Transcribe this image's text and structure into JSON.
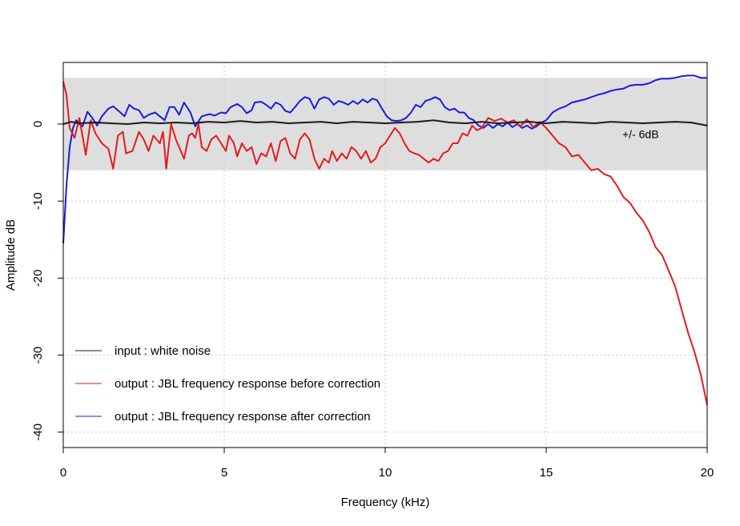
{
  "chart_data": {
    "type": "line",
    "title": "",
    "xlabel": "Frequency (kHz)",
    "ylabel": "Amplitude dB",
    "xlim": [
      0,
      20
    ],
    "ylim": [
      -42,
      8
    ],
    "x_ticks": [
      0,
      5,
      10,
      15,
      20
    ],
    "x_tick_labels": [
      "0",
      "5",
      "10",
      "15",
      "20"
    ],
    "y_ticks": [
      0,
      -10,
      -20,
      -30,
      -40
    ],
    "y_tick_labels": [
      "0",
      "-10",
      "-20",
      "-30",
      "-40"
    ],
    "grid": true,
    "band": {
      "from": -6,
      "to": 6,
      "label": "+/- 6dB",
      "color": "#dedede"
    },
    "legend_position": "bottom-left",
    "series": [
      {
        "name": "input : white noise",
        "color": "#1a1a1a",
        "points": [
          [
            0,
            0
          ],
          [
            0.25,
            0.3
          ],
          [
            0.5,
            0.1
          ],
          [
            1,
            0.2
          ],
          [
            1.5,
            0.1
          ],
          [
            2,
            0
          ],
          [
            2.5,
            0.2
          ],
          [
            3,
            0.1
          ],
          [
            3.5,
            0.2
          ],
          [
            4,
            0.1
          ],
          [
            4.5,
            0.3
          ],
          [
            5,
            0.2
          ],
          [
            5.5,
            0.4
          ],
          [
            6,
            0.2
          ],
          [
            6.5,
            0.3
          ],
          [
            7,
            0.1
          ],
          [
            7.5,
            0.2
          ],
          [
            8,
            0.3
          ],
          [
            8.5,
            0.1
          ],
          [
            9,
            0.3
          ],
          [
            9.5,
            0.2
          ],
          [
            10,
            0.1
          ],
          [
            10.5,
            0.2
          ],
          [
            11,
            0.3
          ],
          [
            11.5,
            0.5
          ],
          [
            12,
            0.2
          ],
          [
            12.5,
            0.1
          ],
          [
            13,
            0.3
          ],
          [
            13.5,
            0.1
          ],
          [
            14,
            0.2
          ],
          [
            14.5,
            0.3
          ],
          [
            15,
            0.1
          ],
          [
            15.5,
            0.3
          ],
          [
            16,
            0.2
          ],
          [
            16.5,
            0.1
          ],
          [
            17,
            0.3
          ],
          [
            17.5,
            0.2
          ],
          [
            18,
            0.1
          ],
          [
            18.5,
            0.2
          ],
          [
            19,
            0.3
          ],
          [
            19.5,
            0.2
          ],
          [
            20,
            -0.2
          ]
        ]
      },
      {
        "name": "output : JBL frequency response before correction",
        "color": "#e41a1c",
        "points": [
          [
            0,
            5.5
          ],
          [
            0.1,
            3.8
          ],
          [
            0.2,
            -0.5
          ],
          [
            0.35,
            -1.8
          ],
          [
            0.5,
            0.8
          ],
          [
            0.7,
            -4
          ],
          [
            0.85,
            0.5
          ],
          [
            1,
            -1.2
          ],
          [
            1.2,
            -2.5
          ],
          [
            1.4,
            -3.2
          ],
          [
            1.55,
            -5.8
          ],
          [
            1.7,
            -1.5
          ],
          [
            1.85,
            -1
          ],
          [
            1.95,
            -3.8
          ],
          [
            2.15,
            -3.5
          ],
          [
            2.35,
            -1
          ],
          [
            2.5,
            -2
          ],
          [
            2.65,
            -3.5
          ],
          [
            2.8,
            -1.5
          ],
          [
            3.0,
            -2.5
          ],
          [
            3.1,
            -1
          ],
          [
            3.2,
            -5.8
          ],
          [
            3.35,
            0
          ],
          [
            3.5,
            -2
          ],
          [
            3.65,
            -3.5
          ],
          [
            3.75,
            -4.5
          ],
          [
            3.9,
            -1.5
          ],
          [
            4.0,
            -1.2
          ],
          [
            4.1,
            -1.8
          ],
          [
            4.2,
            0
          ],
          [
            4.3,
            -3
          ],
          [
            4.45,
            -3.5
          ],
          [
            4.6,
            -2
          ],
          [
            4.75,
            -1.5
          ],
          [
            4.9,
            -2.5
          ],
          [
            5.05,
            -3.5
          ],
          [
            5.15,
            -1.5
          ],
          [
            5.3,
            -2.5
          ],
          [
            5.4,
            -4.2
          ],
          [
            5.55,
            -2.5
          ],
          [
            5.7,
            -3.5
          ],
          [
            5.85,
            -3
          ],
          [
            6.0,
            -5.2
          ],
          [
            6.15,
            -3.8
          ],
          [
            6.3,
            -4.2
          ],
          [
            6.45,
            -2.5
          ],
          [
            6.6,
            -4.8
          ],
          [
            6.75,
            -2.2
          ],
          [
            6.9,
            -1.8
          ],
          [
            7.05,
            -3.8
          ],
          [
            7.2,
            -4.5
          ],
          [
            7.35,
            -2
          ],
          [
            7.5,
            -1.2
          ],
          [
            7.65,
            -2
          ],
          [
            7.8,
            -4.5
          ],
          [
            7.95,
            -5.8
          ],
          [
            8.1,
            -4.5
          ],
          [
            8.25,
            -5
          ],
          [
            8.35,
            -3.5
          ],
          [
            8.5,
            -4.8
          ],
          [
            8.65,
            -3.8
          ],
          [
            8.8,
            -4.5
          ],
          [
            8.95,
            -3
          ],
          [
            9.1,
            -3.5
          ],
          [
            9.25,
            -4.5
          ],
          [
            9.4,
            -3.5
          ],
          [
            9.55,
            -5
          ],
          [
            9.7,
            -4.5
          ],
          [
            9.85,
            -3
          ],
          [
            10.0,
            -2.5
          ],
          [
            10.15,
            -1.5
          ],
          [
            10.3,
            -0.5
          ],
          [
            10.45,
            -1.2
          ],
          [
            10.6,
            -2.5
          ],
          [
            10.75,
            -3.5
          ],
          [
            10.9,
            -3.8
          ],
          [
            11.05,
            -4
          ],
          [
            11.2,
            -4.5
          ],
          [
            11.35,
            -5
          ],
          [
            11.5,
            -4.5
          ],
          [
            11.65,
            -4.8
          ],
          [
            11.8,
            -3.8
          ],
          [
            11.95,
            -3.5
          ],
          [
            12.1,
            -2.5
          ],
          [
            12.25,
            -2.5
          ],
          [
            12.4,
            -1.2
          ],
          [
            12.55,
            -1.5
          ],
          [
            12.7,
            -0.2
          ],
          [
            12.85,
            -0.8
          ],
          [
            13.0,
            -0.5
          ],
          [
            13.2,
            0.8
          ],
          [
            13.4,
            0.4
          ],
          [
            13.6,
            0.7
          ],
          [
            13.8,
            0.2
          ],
          [
            14.0,
            0.5
          ],
          [
            14.2,
            -0.3
          ],
          [
            14.4,
            0.6
          ],
          [
            14.6,
            -0.4
          ],
          [
            14.8,
            0.3
          ],
          [
            15.0,
            -0.5
          ],
          [
            15.2,
            -1.5
          ],
          [
            15.4,
            -2.5
          ],
          [
            15.6,
            -3
          ],
          [
            15.8,
            -4.2
          ],
          [
            16.0,
            -4
          ],
          [
            16.2,
            -5
          ],
          [
            16.4,
            -6
          ],
          [
            16.6,
            -5.8
          ],
          [
            16.8,
            -6.5
          ],
          [
            17.0,
            -6.8
          ],
          [
            17.2,
            -8
          ],
          [
            17.4,
            -9.5
          ],
          [
            17.6,
            -10.2
          ],
          [
            17.8,
            -11.5
          ],
          [
            18.0,
            -12.5
          ],
          [
            18.2,
            -14
          ],
          [
            18.4,
            -16
          ],
          [
            18.6,
            -17
          ],
          [
            18.8,
            -19
          ],
          [
            19.0,
            -21
          ],
          [
            19.2,
            -24
          ],
          [
            19.4,
            -27
          ],
          [
            19.6,
            -29.5
          ],
          [
            19.8,
            -32.5
          ],
          [
            20,
            -36.5
          ]
        ]
      },
      {
        "name": "output : JBL frequency response after correction",
        "color": "#1a1ae0",
        "points": [
          [
            0,
            -15.5
          ],
          [
            0.1,
            -8
          ],
          [
            0.2,
            -3
          ],
          [
            0.3,
            -0.5
          ],
          [
            0.4,
            0.5
          ],
          [
            0.5,
            0
          ],
          [
            0.6,
            -0.3
          ],
          [
            0.75,
            1.6
          ],
          [
            0.9,
            0.8
          ],
          [
            1.05,
            -0.2
          ],
          [
            1.2,
            1
          ],
          [
            1.4,
            2
          ],
          [
            1.55,
            2.3
          ],
          [
            1.75,
            1.6
          ],
          [
            1.9,
            1
          ],
          [
            2.05,
            2.5
          ],
          [
            2.2,
            2
          ],
          [
            2.35,
            1.8
          ],
          [
            2.5,
            0.8
          ],
          [
            2.65,
            1.2
          ],
          [
            2.85,
            1.5
          ],
          [
            3.0,
            1
          ],
          [
            3.15,
            0.5
          ],
          [
            3.3,
            2.2
          ],
          [
            3.45,
            2.2
          ],
          [
            3.6,
            1.2
          ],
          [
            3.75,
            2.8
          ],
          [
            3.95,
            1.5
          ],
          [
            4.1,
            -0.3
          ],
          [
            4.3,
            1
          ],
          [
            4.55,
            1.3
          ],
          [
            4.7,
            1.1
          ],
          [
            4.9,
            1.5
          ],
          [
            5.05,
            1.4
          ],
          [
            5.2,
            2.2
          ],
          [
            5.4,
            2.6
          ],
          [
            5.55,
            2.2
          ],
          [
            5.7,
            1.4
          ],
          [
            5.85,
            1.8
          ],
          [
            5.95,
            2.8
          ],
          [
            6.15,
            2.9
          ],
          [
            6.3,
            2.5
          ],
          [
            6.45,
            2
          ],
          [
            6.6,
            2.8
          ],
          [
            6.75,
            2.5
          ],
          [
            6.9,
            1.7
          ],
          [
            7.05,
            1.5
          ],
          [
            7.2,
            2.2
          ],
          [
            7.35,
            3
          ],
          [
            7.5,
            3.5
          ],
          [
            7.65,
            3.3
          ],
          [
            7.8,
            2
          ],
          [
            7.95,
            3.2
          ],
          [
            8.1,
            3.5
          ],
          [
            8.25,
            3.3
          ],
          [
            8.4,
            2.5
          ],
          [
            8.55,
            3
          ],
          [
            8.7,
            2.8
          ],
          [
            8.85,
            2.5
          ],
          [
            9.0,
            3
          ],
          [
            9.15,
            2.6
          ],
          [
            9.3,
            3.2
          ],
          [
            9.45,
            2.8
          ],
          [
            9.6,
            3.3
          ],
          [
            9.75,
            3.1
          ],
          [
            9.9,
            2
          ],
          [
            10.05,
            1
          ],
          [
            10.2,
            0.5
          ],
          [
            10.35,
            0.4
          ],
          [
            10.5,
            0.5
          ],
          [
            10.65,
            0.8
          ],
          [
            10.8,
            1.5
          ],
          [
            10.95,
            2.5
          ],
          [
            11.1,
            2.2
          ],
          [
            11.25,
            3
          ],
          [
            11.4,
            3.2
          ],
          [
            11.55,
            3.5
          ],
          [
            11.7,
            3.2
          ],
          [
            11.85,
            2.2
          ],
          [
            12.0,
            1.8
          ],
          [
            12.15,
            2
          ],
          [
            12.3,
            1.5
          ],
          [
            12.45,
            1.5
          ],
          [
            12.6,
            0.8
          ],
          [
            12.75,
            0.5
          ],
          [
            12.9,
            -0.2
          ],
          [
            13.05,
            -0.5
          ],
          [
            13.2,
            0
          ],
          [
            13.35,
            -0.5
          ],
          [
            13.5,
            0
          ],
          [
            13.65,
            -0.3
          ],
          [
            13.8,
            0.2
          ],
          [
            13.95,
            -0.4
          ],
          [
            14.1,
            0
          ],
          [
            14.25,
            -0.5
          ],
          [
            14.4,
            -0.2
          ],
          [
            14.55,
            -0.6
          ],
          [
            14.7,
            -0.3
          ],
          [
            14.85,
            0.2
          ],
          [
            15.0,
            0.5
          ],
          [
            15.2,
            1.5
          ],
          [
            15.4,
            2
          ],
          [
            15.6,
            2.3
          ],
          [
            15.8,
            2.8
          ],
          [
            16.0,
            3
          ],
          [
            16.2,
            3.2
          ],
          [
            16.4,
            3.5
          ],
          [
            16.6,
            3.8
          ],
          [
            16.8,
            4
          ],
          [
            17.0,
            4.3
          ],
          [
            17.2,
            4.5
          ],
          [
            17.4,
            4.6
          ],
          [
            17.6,
            5
          ],
          [
            17.8,
            5.1
          ],
          [
            18.0,
            5.1
          ],
          [
            18.2,
            5.3
          ],
          [
            18.4,
            5.7
          ],
          [
            18.6,
            5.9
          ],
          [
            18.8,
            5.9
          ],
          [
            19.0,
            6
          ],
          [
            19.2,
            6.2
          ],
          [
            19.4,
            6.3
          ],
          [
            19.6,
            6.3
          ],
          [
            19.8,
            6
          ],
          [
            20,
            6
          ]
        ]
      }
    ]
  }
}
